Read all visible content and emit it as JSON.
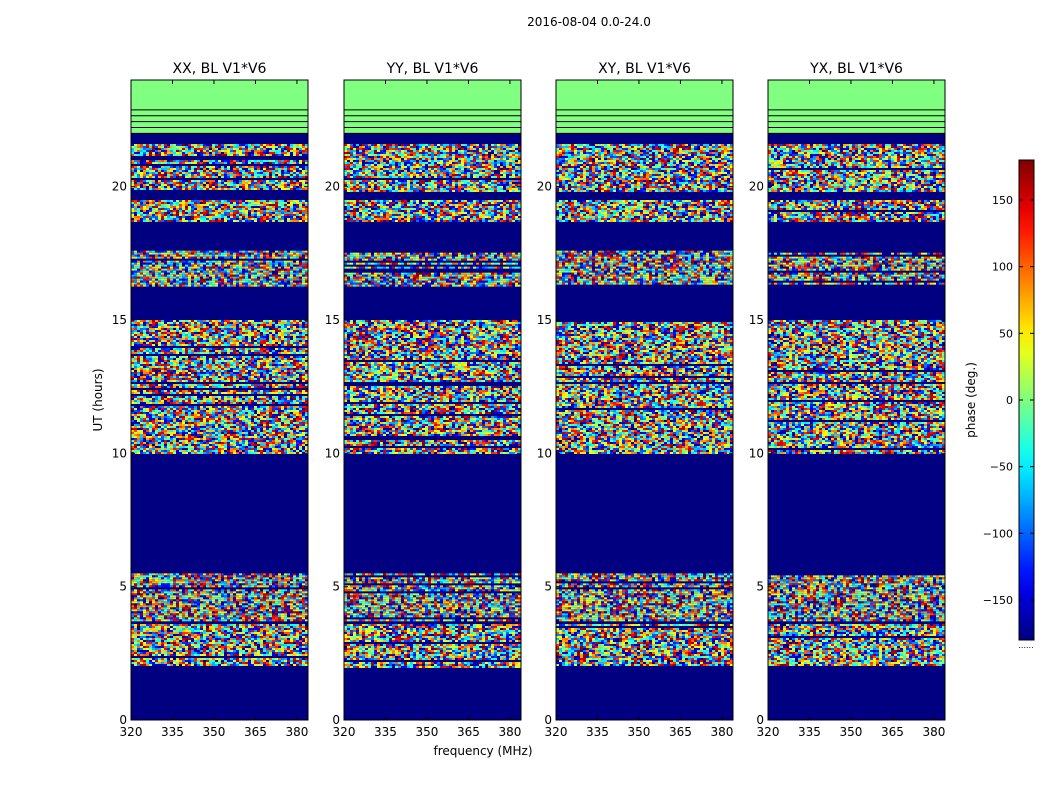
{
  "figure": {
    "suptitle": "2016-08-04 0.0-24.0"
  },
  "chart_data": {
    "type": "heatmap",
    "quantity": "visibility phase vs. UT and frequency",
    "xlabel": "frequency (MHz)",
    "ylabel": "UT (hours)",
    "xlim": [
      320,
      384
    ],
    "ylim": [
      0,
      24
    ],
    "xticks": [
      320,
      335,
      350,
      365,
      380
    ],
    "yticks": [
      0,
      5,
      10,
      15,
      20
    ],
    "panels": [
      {
        "title": "XX, BL V1*V6"
      },
      {
        "title": "YY, BL V1*V6"
      },
      {
        "title": "XY, BL V1*V6"
      },
      {
        "title": "YX, BL V1*V6"
      }
    ],
    "colorbar": {
      "label": "phase (deg.)",
      "range": [
        -180,
        180
      ],
      "ticks": [
        150,
        100,
        50,
        0,
        -50,
        -100,
        -150
      ],
      "tick_labels": [
        "150",
        "100",
        "50",
        "0",
        "−50",
        "−100",
        "−150"
      ],
      "colormap": "jet",
      "footer": "......"
    },
    "flagged_phase_deg": 0,
    "empty_phase_deg": -180,
    "data_bands_ut_hours": [
      [
        2.0,
        3.6
      ],
      [
        3.7,
        5.5
      ],
      [
        10.0,
        12.6
      ],
      [
        12.7,
        15.0
      ],
      [
        16.3,
        17.6
      ],
      [
        18.7,
        19.5
      ],
      [
        19.8,
        21.6
      ]
    ],
    "flagged_band_ut_hours": [
      22.0,
      24.0
    ]
  }
}
